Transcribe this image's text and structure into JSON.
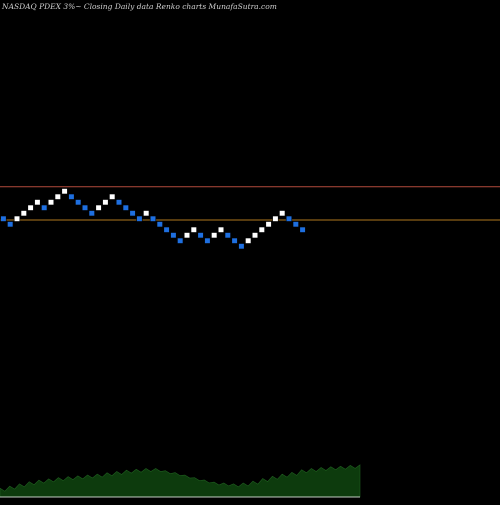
{
  "header": {
    "title": "NASDAQ PDEX  3%~  Closing Daily data  Renko  charts MunafaSutra.com"
  },
  "colors": {
    "background": "#000000",
    "brick_up": "#ffffff",
    "brick_down": "#1e6fe0",
    "brick_border": "#000000",
    "line_upper": "#b24a3c",
    "line_lower": "#b0781e",
    "volume_fill": "#0d3b0d",
    "volume_stroke": "#1f5e1f"
  },
  "chart_data": [
    {
      "type": "renko",
      "direction_sequence": [
        "D",
        "D",
        "U",
        "U",
        "U",
        "U",
        "D",
        "U",
        "U",
        "U",
        "D",
        "D",
        "D",
        "D",
        "U",
        "U",
        "U",
        "D",
        "D",
        "D",
        "D",
        "U",
        "D",
        "D",
        "D",
        "D",
        "D",
        "U",
        "U",
        "D",
        "D",
        "U",
        "U",
        "D",
        "D",
        "D",
        "U",
        "U",
        "U",
        "U",
        "U",
        "U",
        "D",
        "D",
        "D"
      ],
      "reference_lines": [
        "upper",
        "lower"
      ]
    },
    {
      "type": "area",
      "series": [
        {
          "values": [
            25.0,
            26.2,
            27.5,
            28.7,
            29.6,
            30.3,
            31.0,
            31.6,
            32.0,
            32.5,
            33.0,
            33.8,
            34.5,
            35.3,
            35.8,
            36.2,
            36.2,
            35.0,
            33.9,
            32.5,
            31.0,
            29.7,
            28.5,
            28.0,
            27.5,
            28.0,
            29.0,
            30.5,
            31.8,
            33.0,
            34.0,
            35.5,
            36.2,
            36.8,
            37.2,
            37.5,
            38.0,
            38.3
          ]
        }
      ],
      "ylim": [
        20,
        70
      ]
    }
  ]
}
